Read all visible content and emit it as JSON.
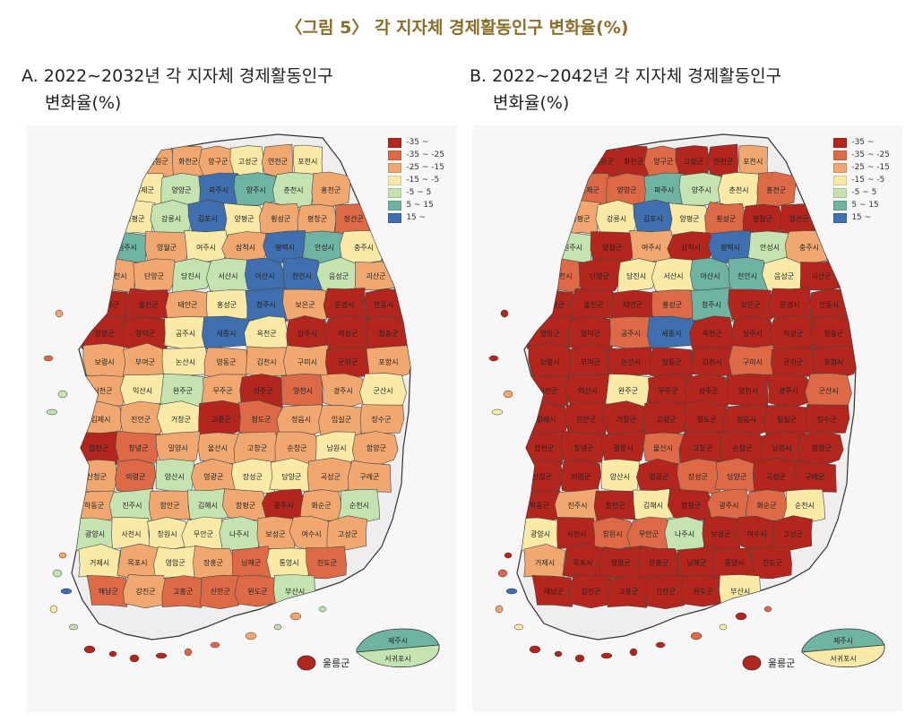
{
  "figure_title": "〈그림 5〉 각 지자체 경제활동인구 변화율(%)",
  "legend": [
    {
      "label": "-35 ~",
      "color": "#b3261e"
    },
    {
      "label": "-35 ~ -25",
      "color": "#dd6a46"
    },
    {
      "label": "-25 ~ -15",
      "color": "#f0a870"
    },
    {
      "label": "-15 ~ -5",
      "color": "#faeaa8"
    },
    {
      "label": "-5 ~ 5",
      "color": "#c5e3b0"
    },
    {
      "label": "5 ~ 15",
      "color": "#6fb3a3"
    },
    {
      "label": "15 ~",
      "color": "#3f6fae"
    }
  ],
  "panels": [
    {
      "id": "a",
      "title_line1": "A. 2022∼2032년 각 지자체 경제활동인구",
      "title_line2": "변화율(%)",
      "regions": [
        {
          "name": "철원군",
          "cls": 2
        },
        {
          "name": "화천군",
          "cls": 2
        },
        {
          "name": "양구군",
          "cls": 2
        },
        {
          "name": "고성군",
          "cls": 3
        },
        {
          "name": "연천군",
          "cls": 2
        },
        {
          "name": "포천시",
          "cls": 3
        },
        {
          "name": "인제군",
          "cls": 3
        },
        {
          "name": "양양군",
          "cls": 4
        },
        {
          "name": "파주시",
          "cls": 6
        },
        {
          "name": "양주시",
          "cls": 5
        },
        {
          "name": "춘천시",
          "cls": 4
        },
        {
          "name": "홍천군",
          "cls": 2
        },
        {
          "name": "가평군",
          "cls": 3
        },
        {
          "name": "강릉시",
          "cls": 4
        },
        {
          "name": "김포시",
          "cls": 6
        },
        {
          "name": "양평군",
          "cls": 3
        },
        {
          "name": "횡성군",
          "cls": 2
        },
        {
          "name": "평창군",
          "cls": 2
        },
        {
          "name": "정선군",
          "cls": 1
        },
        {
          "name": "원주시",
          "cls": 5
        },
        {
          "name": "영월군",
          "cls": 2
        },
        {
          "name": "여주시",
          "cls": 3
        },
        {
          "name": "삼척시",
          "cls": 2
        },
        {
          "name": "평택시",
          "cls": 6
        },
        {
          "name": "안성시",
          "cls": 5
        },
        {
          "name": "충주시",
          "cls": 3
        },
        {
          "name": "제천시",
          "cls": 2
        },
        {
          "name": "단양군",
          "cls": 2
        },
        {
          "name": "당진시",
          "cls": 4
        },
        {
          "name": "서산시",
          "cls": 4
        },
        {
          "name": "아산시",
          "cls": 6
        },
        {
          "name": "천안시",
          "cls": 6
        },
        {
          "name": "음성군",
          "cls": 4
        },
        {
          "name": "괴산군",
          "cls": 2
        },
        {
          "name": "봉화군",
          "cls": 0
        },
        {
          "name": "울진군",
          "cls": 0
        },
        {
          "name": "태안군",
          "cls": 2
        },
        {
          "name": "홍성군",
          "cls": 3
        },
        {
          "name": "청주시",
          "cls": 6
        },
        {
          "name": "보은군",
          "cls": 2
        },
        {
          "name": "문경시",
          "cls": 0
        },
        {
          "name": "안동시",
          "cls": 0
        },
        {
          "name": "영양군",
          "cls": 0
        },
        {
          "name": "영덕군",
          "cls": 0
        },
        {
          "name": "공주시",
          "cls": 3
        },
        {
          "name": "세종시",
          "cls": 6
        },
        {
          "name": "옥천군",
          "cls": 3
        },
        {
          "name": "상주시",
          "cls": 0
        },
        {
          "name": "의성군",
          "cls": 0
        },
        {
          "name": "청송군",
          "cls": 0
        },
        {
          "name": "보령시",
          "cls": 2
        },
        {
          "name": "부여군",
          "cls": 2
        },
        {
          "name": "논산시",
          "cls": 3
        },
        {
          "name": "영동군",
          "cls": 2
        },
        {
          "name": "김천시",
          "cls": 2
        },
        {
          "name": "구미시",
          "cls": 2
        },
        {
          "name": "군위군",
          "cls": 0
        },
        {
          "name": "포항시",
          "cls": 2
        },
        {
          "name": "서천군",
          "cls": 2
        },
        {
          "name": "익산시",
          "cls": 3
        },
        {
          "name": "완주군",
          "cls": 4
        },
        {
          "name": "무주군",
          "cls": 2
        },
        {
          "name": "성주군",
          "cls": 0
        },
        {
          "name": "영천시",
          "cls": 1
        },
        {
          "name": "경주시",
          "cls": 2
        },
        {
          "name": "군산시",
          "cls": 3
        },
        {
          "name": "김제시",
          "cls": 2
        },
        {
          "name": "진안군",
          "cls": 2
        },
        {
          "name": "거창군",
          "cls": 3
        },
        {
          "name": "고령군",
          "cls": 0
        },
        {
          "name": "청도군",
          "cls": 1
        },
        {
          "name": "정읍시",
          "cls": 2
        },
        {
          "name": "임실군",
          "cls": 2
        },
        {
          "name": "장수군",
          "cls": 2
        },
        {
          "name": "합천군",
          "cls": 0
        },
        {
          "name": "창녕군",
          "cls": 1
        },
        {
          "name": "밀양시",
          "cls": 2
        },
        {
          "name": "울산시",
          "cls": 2
        },
        {
          "name": "고창군",
          "cls": 2
        },
        {
          "name": "순창군",
          "cls": 2
        },
        {
          "name": "남원시",
          "cls": 3
        },
        {
          "name": "함양군",
          "cls": 2
        },
        {
          "name": "산청군",
          "cls": 2
        },
        {
          "name": "의령군",
          "cls": 1
        },
        {
          "name": "양산시",
          "cls": 4
        },
        {
          "name": "영광군",
          "cls": 2
        },
        {
          "name": "장성군",
          "cls": 3
        },
        {
          "name": "담양군",
          "cls": 3
        },
        {
          "name": "곡성군",
          "cls": 2
        },
        {
          "name": "구례군",
          "cls": 2
        },
        {
          "name": "하동군",
          "cls": 2
        },
        {
          "name": "진주시",
          "cls": 4
        },
        {
          "name": "함안군",
          "cls": 2
        },
        {
          "name": "김해시",
          "cls": 4
        },
        {
          "name": "함평군",
          "cls": 2
        },
        {
          "name": "광주시",
          "cls": 0
        },
        {
          "name": "화순군",
          "cls": 2
        },
        {
          "name": "순천시",
          "cls": 4
        },
        {
          "name": "광양시",
          "cls": 4
        },
        {
          "name": "사천시",
          "cls": 3
        },
        {
          "name": "창원시",
          "cls": 3
        },
        {
          "name": "무안군",
          "cls": 3
        },
        {
          "name": "나주시",
          "cls": 4
        },
        {
          "name": "보성군",
          "cls": 2
        },
        {
          "name": "여수시",
          "cls": 2
        },
        {
          "name": "고성군",
          "cls": 2
        },
        {
          "name": "거제시",
          "cls": 3
        },
        {
          "name": "목포시",
          "cls": 2
        },
        {
          "name": "영암군",
          "cls": 3
        },
        {
          "name": "장흥군",
          "cls": 2
        },
        {
          "name": "남해군",
          "cls": 1
        },
        {
          "name": "통영시",
          "cls": 3
        },
        {
          "name": "진도군",
          "cls": 1
        },
        {
          "name": "해남군",
          "cls": 1
        },
        {
          "name": "강진군",
          "cls": 2
        },
        {
          "name": "고흥군",
          "cls": 1
        },
        {
          "name": "신안군",
          "cls": 1
        },
        {
          "name": "완도군",
          "cls": 1
        },
        {
          "name": "부산시",
          "cls": 4
        }
      ],
      "ulleung": {
        "name": "울릉군",
        "cls": 0
      },
      "jeju": [
        {
          "name": "제주시",
          "cls": 5
        },
        {
          "name": "서귀포시",
          "cls": 4
        }
      ]
    },
    {
      "id": "b",
      "title_line1": "B. 2022∼2042년 각 지자체 경제활동인구",
      "title_line2": "변화율(%)",
      "regions": [
        {
          "name": "철원군",
          "cls": 0
        },
        {
          "name": "화천군",
          "cls": 0
        },
        {
          "name": "양구군",
          "cls": 1
        },
        {
          "name": "고성군",
          "cls": 0
        },
        {
          "name": "연천군",
          "cls": 0
        },
        {
          "name": "포천시",
          "cls": 2
        },
        {
          "name": "인제군",
          "cls": 1
        },
        {
          "name": "양양군",
          "cls": 1
        },
        {
          "name": "파주시",
          "cls": 5
        },
        {
          "name": "양주시",
          "cls": 4
        },
        {
          "name": "춘천시",
          "cls": 3
        },
        {
          "name": "홍천군",
          "cls": 1
        },
        {
          "name": "가평군",
          "cls": 2
        },
        {
          "name": "강릉시",
          "cls": 3
        },
        {
          "name": "김포시",
          "cls": 6
        },
        {
          "name": "양평군",
          "cls": 3
        },
        {
          "name": "횡성군",
          "cls": 1
        },
        {
          "name": "평창군",
          "cls": 0
        },
        {
          "name": "정선군",
          "cls": 0
        },
        {
          "name": "원주시",
          "cls": 4
        },
        {
          "name": "영월군",
          "cls": 0
        },
        {
          "name": "여주시",
          "cls": 2
        },
        {
          "name": "삼척시",
          "cls": 0
        },
        {
          "name": "평택시",
          "cls": 6
        },
        {
          "name": "안성시",
          "cls": 4
        },
        {
          "name": "충주시",
          "cls": 2
        },
        {
          "name": "제천시",
          "cls": 1
        },
        {
          "name": "단양군",
          "cls": 0
        },
        {
          "name": "당진시",
          "cls": 3
        },
        {
          "name": "서산시",
          "cls": 3
        },
        {
          "name": "아산시",
          "cls": 5
        },
        {
          "name": "천안시",
          "cls": 5
        },
        {
          "name": "음성군",
          "cls": 3
        },
        {
          "name": "괴산군",
          "cls": 0
        },
        {
          "name": "봉화군",
          "cls": 0
        },
        {
          "name": "울진군",
          "cls": 0
        },
        {
          "name": "태안군",
          "cls": 0
        },
        {
          "name": "홍성군",
          "cls": 1
        },
        {
          "name": "청주시",
          "cls": 5
        },
        {
          "name": "보은군",
          "cls": 0
        },
        {
          "name": "문경시",
          "cls": 0
        },
        {
          "name": "안동시",
          "cls": 0
        },
        {
          "name": "영양군",
          "cls": 0
        },
        {
          "name": "영덕군",
          "cls": 0
        },
        {
          "name": "공주시",
          "cls": 1
        },
        {
          "name": "세종시",
          "cls": 6
        },
        {
          "name": "옥천군",
          "cls": 0
        },
        {
          "name": "상주시",
          "cls": 0
        },
        {
          "name": "의성군",
          "cls": 0
        },
        {
          "name": "청송군",
          "cls": 0
        },
        {
          "name": "보령시",
          "cls": 0
        },
        {
          "name": "부여군",
          "cls": 0
        },
        {
          "name": "논산시",
          "cls": 0
        },
        {
          "name": "영동군",
          "cls": 0
        },
        {
          "name": "김천시",
          "cls": 0
        },
        {
          "name": "구미시",
          "cls": 1
        },
        {
          "name": "군위군",
          "cls": 0
        },
        {
          "name": "포항시",
          "cls": 0
        },
        {
          "name": "서천군",
          "cls": 0
        },
        {
          "name": "익산시",
          "cls": 0
        },
        {
          "name": "완주군",
          "cls": 3
        },
        {
          "name": "무주군",
          "cls": 0
        },
        {
          "name": "성주군",
          "cls": 0
        },
        {
          "name": "영천시",
          "cls": 0
        },
        {
          "name": "경주시",
          "cls": 0
        },
        {
          "name": "군산시",
          "cls": 1
        },
        {
          "name": "김제시",
          "cls": 0
        },
        {
          "name": "진안군",
          "cls": 0
        },
        {
          "name": "거창군",
          "cls": 0
        },
        {
          "name": "고령군",
          "cls": 0
        },
        {
          "name": "청도군",
          "cls": 0
        },
        {
          "name": "정읍시",
          "cls": 0
        },
        {
          "name": "임실군",
          "cls": 0
        },
        {
          "name": "장수군",
          "cls": 0
        },
        {
          "name": "합천군",
          "cls": 0
        },
        {
          "name": "창녕군",
          "cls": 0
        },
        {
          "name": "밀양시",
          "cls": 0
        },
        {
          "name": "울산시",
          "cls": 1
        },
        {
          "name": "고창군",
          "cls": 0
        },
        {
          "name": "순창군",
          "cls": 0
        },
        {
          "name": "남원시",
          "cls": 0
        },
        {
          "name": "함양군",
          "cls": 0
        },
        {
          "name": "산청군",
          "cls": 0
        },
        {
          "name": "의령군",
          "cls": 0
        },
        {
          "name": "양산시",
          "cls": 3
        },
        {
          "name": "영광군",
          "cls": 0
        },
        {
          "name": "장성군",
          "cls": 1
        },
        {
          "name": "담양군",
          "cls": 1
        },
        {
          "name": "곡성군",
          "cls": 0
        },
        {
          "name": "구례군",
          "cls": 0
        },
        {
          "name": "하동군",
          "cls": 0
        },
        {
          "name": "진주시",
          "cls": 2
        },
        {
          "name": "함안군",
          "cls": 0
        },
        {
          "name": "김해시",
          "cls": 3
        },
        {
          "name": "함평군",
          "cls": 0
        },
        {
          "name": "광주시",
          "cls": 1
        },
        {
          "name": "화순군",
          "cls": 1
        },
        {
          "name": "순천시",
          "cls": 3
        },
        {
          "name": "광양시",
          "cls": 3
        },
        {
          "name": "사천시",
          "cls": 0
        },
        {
          "name": "창원시",
          "cls": 1
        },
        {
          "name": "무안군",
          "cls": 1
        },
        {
          "name": "나주시",
          "cls": 4
        },
        {
          "name": "보성군",
          "cls": 0
        },
        {
          "name": "여수시",
          "cls": 0
        },
        {
          "name": "고성군",
          "cls": 0
        },
        {
          "name": "거제시",
          "cls": 2
        },
        {
          "name": "목포시",
          "cls": 0
        },
        {
          "name": "영암군",
          "cls": 0
        },
        {
          "name": "장흥군",
          "cls": 0
        },
        {
          "name": "남해군",
          "cls": 0
        },
        {
          "name": "통영시",
          "cls": 0
        },
        {
          "name": "진도군",
          "cls": 0
        },
        {
          "name": "해남군",
          "cls": 0
        },
        {
          "name": "강진군",
          "cls": 0
        },
        {
          "name": "고흥군",
          "cls": 0
        },
        {
          "name": "신안군",
          "cls": 0
        },
        {
          "name": "완도군",
          "cls": 0
        },
        {
          "name": "부산시",
          "cls": 3
        }
      ],
      "ulleung": {
        "name": "울릉군",
        "cls": 0
      },
      "jeju": [
        {
          "name": "제주시",
          "cls": 5
        },
        {
          "name": "서귀포시",
          "cls": 3
        }
      ]
    }
  ]
}
